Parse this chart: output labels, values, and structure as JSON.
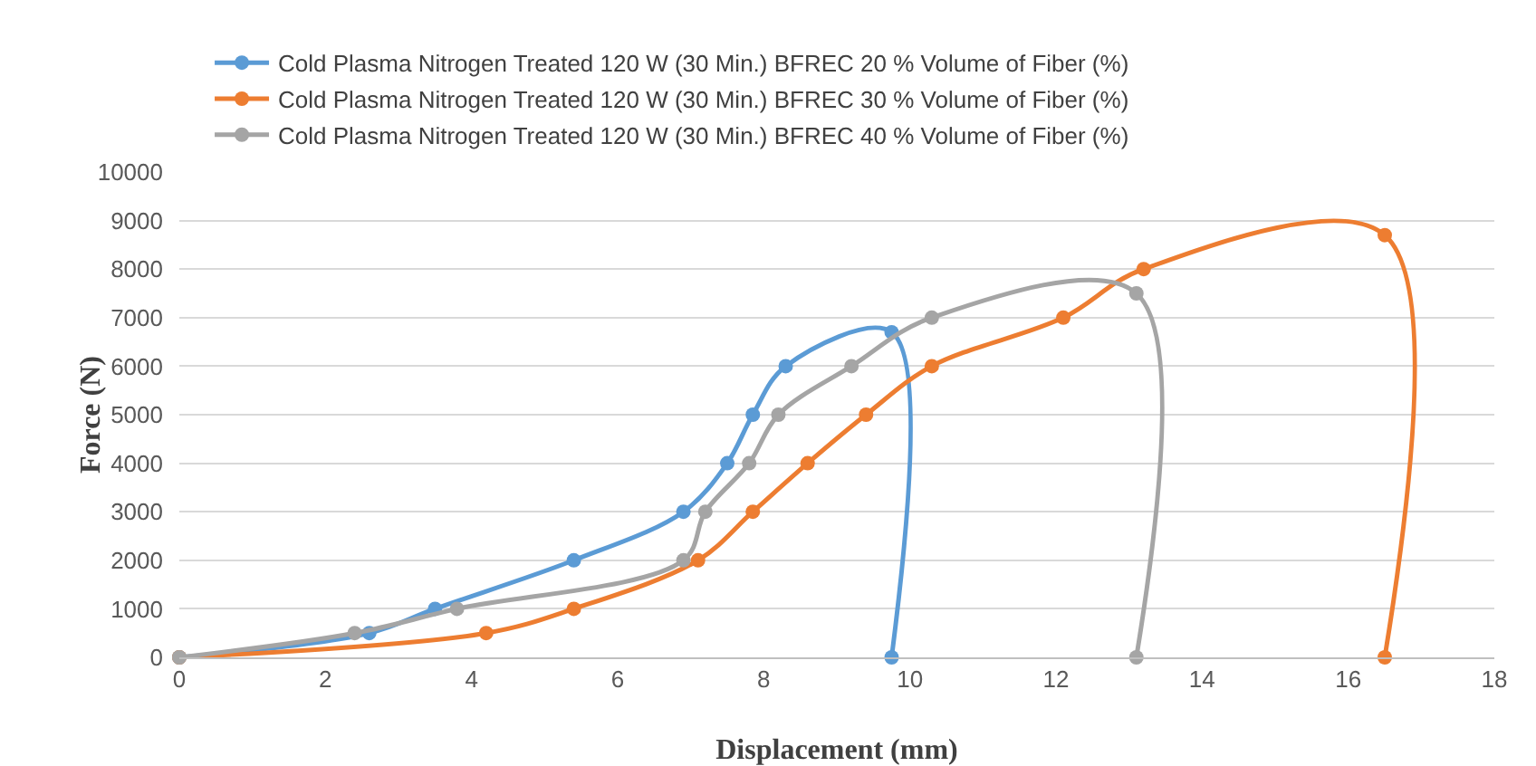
{
  "chart_data": {
    "type": "line",
    "xlabel": "Displacement (mm)",
    "ylabel": "Force (N)",
    "xlim": [
      0,
      18
    ],
    "xticks": [
      0,
      2,
      4,
      6,
      8,
      10,
      12,
      14,
      16,
      18
    ],
    "ylim": [
      0,
      10000
    ],
    "yticks": [
      0,
      1000,
      2000,
      3000,
      4000,
      5000,
      6000,
      7000,
      8000,
      9000,
      10000
    ],
    "grid": "y",
    "legend": "top",
    "marker": "circle",
    "line_style": "solid",
    "series": [
      {
        "name": "Cold Plasma Nitrogen Treated 120 W (30 Min.) BFREC 20 % Volume of Fiber (%)",
        "color": "#5b9bd5",
        "x": [
          0,
          2.6,
          3.5,
          5.4,
          6.9,
          7.5,
          7.85,
          8.3,
          9.75,
          9.75
        ],
        "values": [
          0,
          500,
          1000,
          2000,
          3000,
          4000,
          5000,
          6000,
          6700,
          0
        ]
      },
      {
        "name": "Cold Plasma Nitrogen Treated 120 W (30 Min.) BFREC 30 % Volume of Fiber (%)",
        "color": "#ed7d31",
        "x": [
          0,
          4.2,
          5.4,
          7.1,
          7.85,
          8.6,
          9.4,
          10.3,
          12.1,
          13.2,
          16.5,
          16.5
        ],
        "values": [
          0,
          500,
          1000,
          2000,
          3000,
          4000,
          5000,
          6000,
          7000,
          8000,
          8700,
          0
        ]
      },
      {
        "name": "Cold Plasma Nitrogen Treated 120 W (30 Min.) BFREC 40 % Volume of Fiber (%)",
        "color": "#a5a5a5",
        "x": [
          0,
          2.4,
          3.8,
          6.9,
          7.2,
          7.8,
          8.2,
          9.2,
          10.3,
          13.1,
          13.1
        ],
        "values": [
          0,
          500,
          1000,
          2000,
          3000,
          4000,
          5000,
          6000,
          7000,
          7500,
          0
        ]
      }
    ]
  }
}
